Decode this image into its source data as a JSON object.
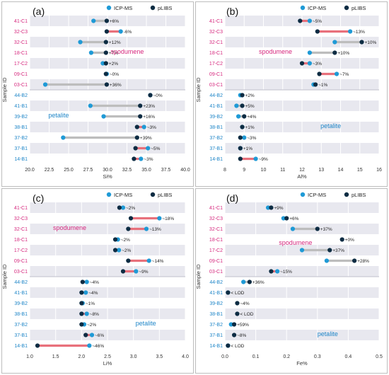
{
  "colors": {
    "icp": "#1f9ad6",
    "plibs": "#0d2c43",
    "neg": "#e8707b",
    "pos": "#bdbdbd",
    "spodumene": "#d6287e",
    "petalite": "#1f86c8"
  },
  "legend": {
    "icp": "ICP-MS",
    "plibs": "pLIBS"
  },
  "ylabel": "Sample ID",
  "categories": [
    "41-C1",
    "32-C3",
    "32-C1",
    "18-C1",
    "17-C2",
    "09-C1",
    "03-C1",
    "44-B2",
    "41-B1",
    "39-B2",
    "38-B1",
    "37-B2",
    "37-B1",
    "14-B1"
  ],
  "groups": {
    "spodumene": "spodumene",
    "petalite": "petalite"
  },
  "chart_data": [
    {
      "type": "dumbbell",
      "panel": "(a)",
      "xlabel": "Si%",
      "xlim": [
        20,
        40
      ],
      "xticks": [
        "20.0",
        "22.5",
        "25.0",
        "27.5",
        "30.0",
        "32.5",
        "35.0",
        "37.5",
        "40.0"
      ],
      "xtick_values": [
        20,
        22.5,
        25,
        27.5,
        30,
        32.5,
        35,
        37.5,
        40
      ],
      "icp": [
        28.2,
        31.7,
        26.5,
        27.9,
        29.4,
        29.9,
        22.0,
        35.5,
        27.8,
        29.5,
        34.7,
        24.3,
        35.2,
        34.3
      ],
      "plibs": [
        29.9,
        29.9,
        29.8,
        29.8,
        29.8,
        29.8,
        29.9,
        35.5,
        34.2,
        34.2,
        33.8,
        33.8,
        33.6,
        33.4
      ],
      "labels": [
        "+6%",
        "-6%",
        "+12%",
        "+7%",
        "+2%",
        "~0%",
        "+36%",
        "~0%",
        "+23%",
        "+16%",
        "~3%",
        "+39%",
        "~5%",
        "~3%"
      ]
    },
    {
      "type": "dumbbell",
      "panel": "(b)",
      "xlabel": "Al%",
      "xlim": [
        8,
        16
      ],
      "xticks": [
        "8",
        "9",
        "10",
        "11",
        "12",
        "13",
        "14",
        "15",
        "16"
      ],
      "xtick_values": [
        8,
        9,
        10,
        11,
        12,
        13,
        14,
        15,
        16
      ],
      "icp": [
        12.4,
        14.5,
        13.7,
        12.4,
        12.4,
        13.8,
        12.6,
        8.8,
        8.6,
        8.7,
        8.9,
        9.0,
        8.8,
        9.6
      ],
      "plibs": [
        11.9,
        12.8,
        15.1,
        13.7,
        12.0,
        12.9,
        12.7,
        8.9,
        8.9,
        9.0,
        8.9,
        8.8,
        8.8,
        8.8
      ],
      "labels": [
        "~5%",
        "~13%",
        "+10%",
        "+10%",
        "~3%",
        "~7%",
        "~1%",
        "+2%",
        "+5%",
        "+4%",
        "+1%",
        "~3%",
        "+1%",
        "~9%"
      ]
    },
    {
      "type": "dumbbell",
      "panel": "(c)",
      "xlabel": "Li%",
      "xlim": [
        1.0,
        4.0
      ],
      "xticks": [
        "1.0",
        "1.5",
        "2.0",
        "2.5",
        "3.0",
        "3.5",
        "4.0"
      ],
      "xtick_values": [
        1.0,
        1.5,
        2.0,
        2.5,
        3.0,
        3.5,
        4.0
      ],
      "icp": [
        2.8,
        3.5,
        3.25,
        2.7,
        2.72,
        3.3,
        3.05,
        2.1,
        2.08,
        2.02,
        2.1,
        2.05,
        2.2,
        2.15
      ],
      "plibs": [
        2.73,
        2.95,
        2.9,
        2.65,
        2.65,
        2.9,
        2.8,
        2.02,
        2.0,
        2.0,
        2.0,
        2.0,
        2.08,
        1.15
      ],
      "labels": [
        "~2%",
        "~18%",
        "~13%",
        "~2%",
        "~2%",
        "~14%",
        "~9%",
        "~4%",
        "~4%",
        "~1%",
        "~8%",
        "~2%",
        "~6%",
        "~46%"
      ]
    },
    {
      "type": "dumbbell",
      "panel": "(d)",
      "xlabel": "Fe%",
      "xlim": [
        0,
        0.5
      ],
      "xticks": [
        "0.0",
        "0.1",
        "0.2",
        "0.3",
        "0.4",
        "0.5"
      ],
      "xtick_values": [
        0,
        0.1,
        0.2,
        0.3,
        0.4,
        0.5
      ],
      "icp": [
        0.14,
        0.19,
        0.22,
        null,
        0.25,
        0.33,
        0.17,
        0.06,
        0.01,
        null,
        null,
        0.02,
        null,
        0.01
      ],
      "plibs": [
        0.15,
        0.2,
        0.3,
        0.38,
        0.34,
        0.42,
        0.15,
        0.08,
        0.01,
        0.04,
        0.04,
        0.03,
        0.03,
        0.01
      ],
      "labels": [
        "+9%",
        "+6%",
        "+37%",
        "+0%",
        "+37%",
        "+28%",
        "~15%",
        "+36%",
        "< LOD",
        "~4%",
        "< LOD",
        "+59%",
        "~8%",
        "< LOD"
      ]
    }
  ]
}
